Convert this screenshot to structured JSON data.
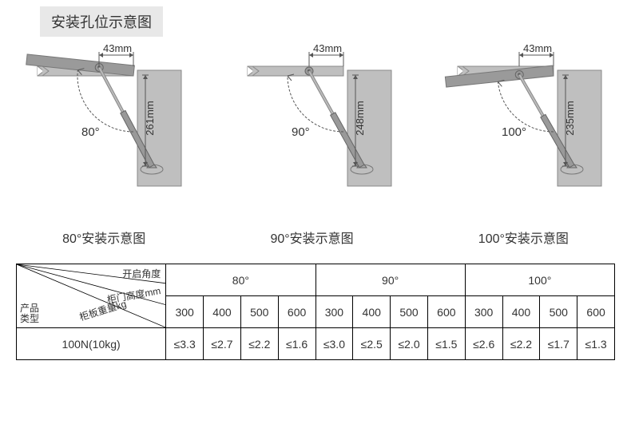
{
  "title": "安装孔位示意图",
  "colors": {
    "cabinet": "#bfbfbf",
    "lid": "#b9b9b9",
    "lidDark": "#9a9a9a",
    "strut": "#8a8a8a",
    "dim": "#555555",
    "text": "#333333",
    "border": "#000000",
    "bg": "#ffffff",
    "titleBg": "#e8e8e8"
  },
  "horizLabel": "43mm",
  "diagrams": [
    {
      "angle": "80°",
      "vert": "261mm",
      "caption": "80°安装示意图",
      "angleDeg": 80
    },
    {
      "angle": "90°",
      "vert": "248mm",
      "caption": "90°安装示意图",
      "angleDeg": 90
    },
    {
      "angle": "100°",
      "vert": "235mm",
      "caption": "100°安装示意图",
      "angleDeg": 100
    }
  ],
  "table": {
    "corner": {
      "top": "开启角度",
      "mid": "柜门高度mm",
      "low": "柜板重量kg",
      "left": "产品\n类型"
    },
    "angleHeaders": [
      "80°",
      "90°",
      "100°"
    ],
    "heightHeaders": [
      "300",
      "400",
      "500",
      "600",
      "300",
      "400",
      "500",
      "600",
      "300",
      "400",
      "500",
      "600"
    ],
    "rowLabel": "100N(10kg)",
    "values": [
      "≤3.3",
      "≤2.7",
      "≤2.2",
      "≤1.6",
      "≤3.0",
      "≤2.5",
      "≤2.0",
      "≤1.5",
      "≤2.6",
      "≤2.2",
      "≤1.7",
      "≤1.3"
    ]
  }
}
